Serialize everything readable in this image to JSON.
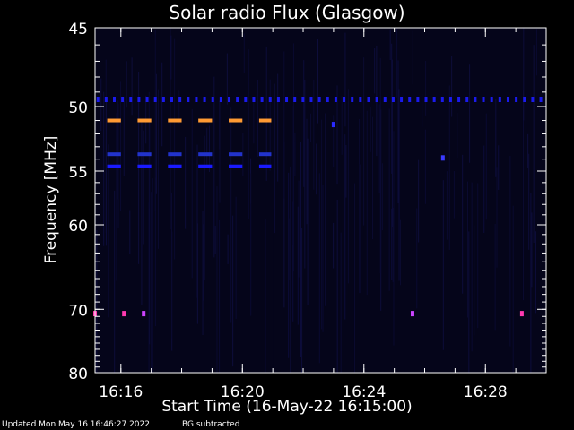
{
  "chart_data": {
    "type": "heatmap",
    "title": "Solar radio Flux (Glasgow)",
    "xlabel": "Start Time (16-May-22 16:15:00)",
    "ylabel": "Frequency [MHz]",
    "x_range_minutes": [
      15.15,
      30.0
    ],
    "x_ticks": [
      {
        "minute": 16,
        "label": "16:16"
      },
      {
        "minute": 20,
        "label": "16:20"
      },
      {
        "minute": 24,
        "label": "16:24"
      },
      {
        "minute": 28,
        "label": "16:28"
      }
    ],
    "y_range": [
      45,
      80
    ],
    "y_ticks": [
      {
        "value": 45,
        "label": "45"
      },
      {
        "value": 50,
        "label": "50"
      },
      {
        "value": 55,
        "label": "55"
      },
      {
        "value": 60,
        "label": "60"
      },
      {
        "value": 70,
        "label": "70"
      },
      {
        "value": 80,
        "label": "80"
      }
    ],
    "background_color": "#000000",
    "plot_background": "#05051a",
    "features": [
      {
        "type": "dashed_band",
        "freq": 51.0,
        "start_min": 15.55,
        "end_min": 20.95,
        "color": "#ff9a33",
        "dash_min": 0.45,
        "gap_min": 0.55
      },
      {
        "type": "dashed_band",
        "freq": 53.6,
        "start_min": 15.55,
        "end_min": 20.95,
        "color": "#2233cc",
        "dash_min": 0.45,
        "gap_min": 0.55
      },
      {
        "type": "dashed_band",
        "freq": 54.6,
        "start_min": 15.55,
        "end_min": 20.95,
        "color": "#1a1aff",
        "dash_min": 0.45,
        "gap_min": 0.55
      },
      {
        "type": "dotted_band",
        "freq": 49.5,
        "start_min": 15.2,
        "end_min": 29.9,
        "color": "#1a1aee",
        "step_min": 0.27
      },
      {
        "type": "spot",
        "freq": 51.3,
        "minute": 23.0,
        "color": "#2a2aff"
      },
      {
        "type": "spot",
        "freq": 53.9,
        "minute": 26.6,
        "color": "#3a3aff"
      },
      {
        "type": "spot",
        "freq": 70.6,
        "minute": 15.15,
        "color": "#ff3ab0"
      },
      {
        "type": "spot",
        "freq": 70.6,
        "minute": 16.1,
        "color": "#ff3ab0"
      },
      {
        "type": "spot",
        "freq": 70.6,
        "minute": 16.75,
        "color": "#cc44ff"
      },
      {
        "type": "spot",
        "freq": 70.6,
        "minute": 25.6,
        "color": "#cc44ff"
      },
      {
        "type": "spot",
        "freq": 70.6,
        "minute": 29.2,
        "color": "#ff3ab0"
      }
    ]
  },
  "footer": {
    "updated": "Updated Mon May 16 16:46:27 2022",
    "note": "BG subtracted"
  }
}
